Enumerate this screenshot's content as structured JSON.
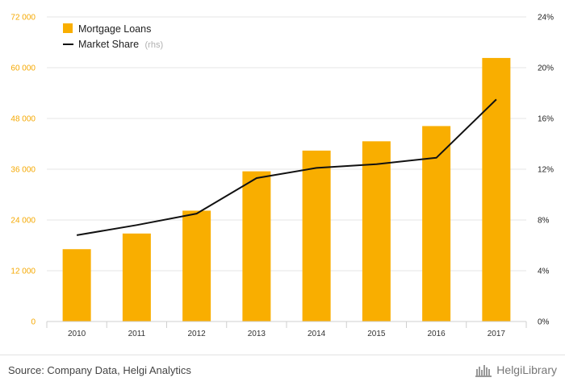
{
  "chart_data": {
    "type": "bar",
    "categories": [
      "2010",
      "2011",
      "2012",
      "2013",
      "2014",
      "2015",
      "2016",
      "2017"
    ],
    "series": [
      {
        "name": "Mortgage Loans",
        "type": "bar",
        "axis": "left",
        "values": [
          17100,
          20800,
          26200,
          35500,
          40400,
          42600,
          46200,
          62300
        ]
      },
      {
        "name": "Market Share",
        "type": "line",
        "axis": "right",
        "values": [
          6.8,
          7.6,
          8.5,
          11.3,
          12.1,
          12.4,
          12.9,
          17.5
        ]
      }
    ],
    "legend": [
      {
        "label": "Mortgage Loans",
        "suffix": ""
      },
      {
        "label": "Market Share",
        "suffix": "(rhs)"
      }
    ],
    "y_left": {
      "ylim": [
        0,
        72000
      ],
      "ticks": [
        "0",
        "12 000",
        "24 000",
        "36 000",
        "48 000",
        "60 000",
        "72 000"
      ]
    },
    "y_right": {
      "ylim": [
        0,
        24
      ],
      "ticks": [
        "0%",
        "4%",
        "8%",
        "12%",
        "16%",
        "20%",
        "24%"
      ]
    },
    "grid": true,
    "legend_position": "top-left",
    "colors": {
      "bar": "#f9ae00",
      "line": "#111111",
      "left_ticks": "#f5a800",
      "grid": "#e6e6e6"
    }
  },
  "footer": {
    "source": "Source: Company Data, Helgi Analytics",
    "brand": "HelgiLibrary"
  }
}
